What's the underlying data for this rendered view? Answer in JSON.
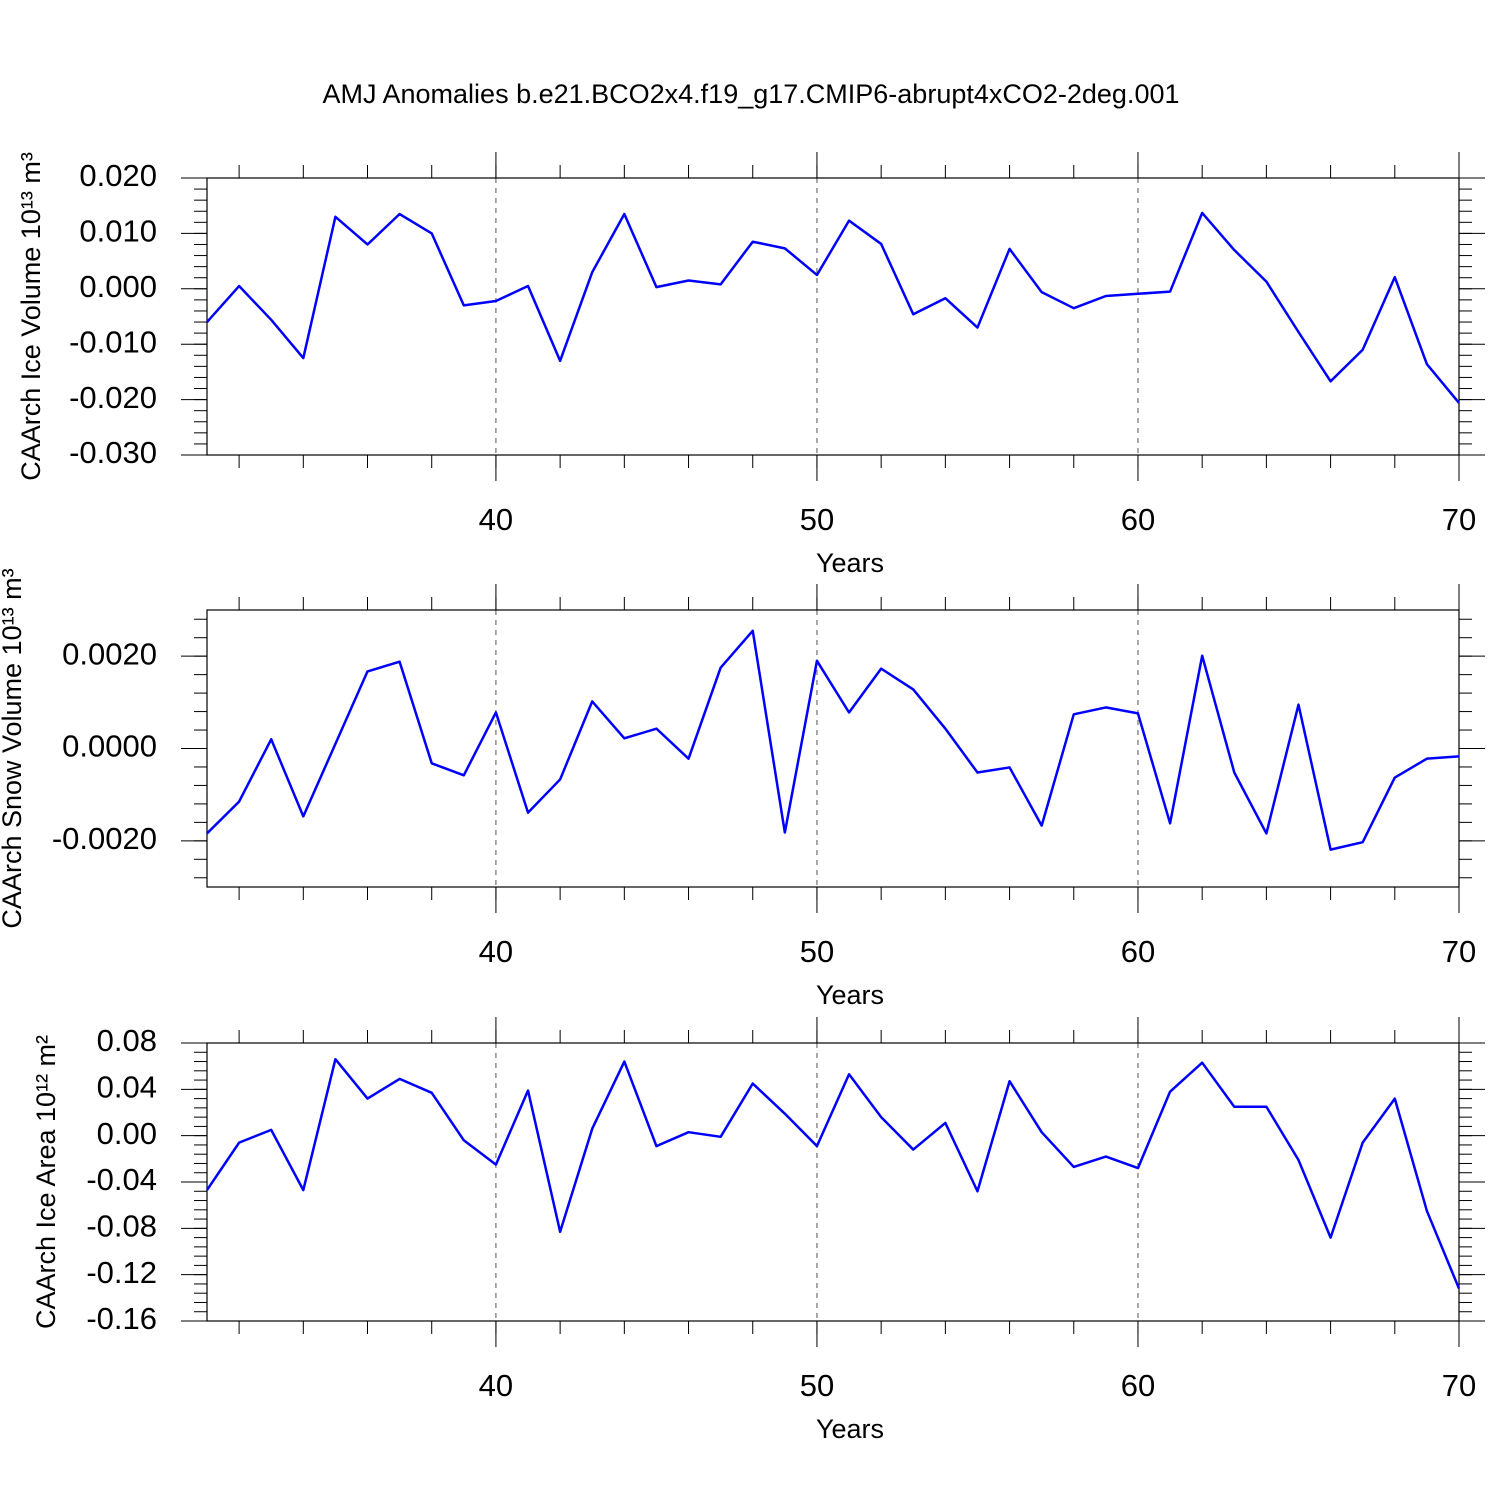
{
  "chart_data": [
    {
      "type": "line",
      "title": "AMJ Anomalies b.e21.BCO2x4.f19_g17.CMIP6-abrupt4xCO2-2deg.001",
      "x_label": "Years",
      "y_label": "CAArch Ice Volume 10¹³ m³",
      "xlim": [
        31,
        70
      ],
      "xticks": [
        40,
        50,
        60,
        70
      ],
      "grid": true,
      "ylim": [
        -0.03,
        0.02
      ],
      "yticks": [
        {
          "value": 0.02,
          "label": "0.020"
        },
        {
          "value": 0.01,
          "label": "0.010"
        },
        {
          "value": 0,
          "label": "0.000"
        },
        {
          "value": -0.01,
          "label": "-0.010"
        },
        {
          "value": -0.02,
          "label": "-0.020"
        },
        {
          "value": -0.03,
          "label": "-0.030"
        }
      ],
      "x": [
        31,
        32,
        33,
        34,
        35,
        36,
        37,
        38,
        39,
        40,
        41,
        42,
        43,
        44,
        45,
        46,
        47,
        48,
        49,
        50,
        51,
        52,
        53,
        54,
        55,
        56,
        57,
        58,
        59,
        60,
        61,
        62,
        63,
        64,
        65,
        66,
        67,
        68,
        69,
        70
      ],
      "series": [
        {
          "color": "#0000ff",
          "values": [
            -0.006,
            0.0005,
            -0.0056,
            -0.0125,
            0.013,
            0.008,
            0.0135,
            0.01,
            -0.003,
            -0.0022,
            0.0005,
            -0.013,
            0.003,
            0.0135,
            0.0003,
            0.0015,
            0.0008,
            0.0085,
            0.0073,
            0.0025,
            0.0123,
            0.0081,
            -0.0046,
            -0.0017,
            -0.007,
            0.0072,
            -0.0006,
            -0.0035,
            -0.0013,
            -0.0009,
            -0.0005,
            0.0137,
            0.007,
            0.0013,
            -0.0078,
            -0.0167,
            -0.011,
            0.0021,
            -0.0136,
            -0.0206
          ]
        }
      ]
    },
    {
      "type": "line",
      "x_label": "Years",
      "y_label": "CAArch Snow Volume 10¹³ m³",
      "xlim": [
        31,
        70
      ],
      "xticks": [
        40,
        50,
        60,
        70
      ],
      "grid": true,
      "ylim": [
        -0.003,
        0.003
      ],
      "yticks": [
        {
          "value": 0.002,
          "label": "0.0020"
        },
        {
          "value": 0,
          "label": "0.0000"
        },
        {
          "value": -0.002,
          "label": "-0.0020"
        }
      ],
      "x": [
        31,
        32,
        33,
        34,
        35,
        36,
        37,
        38,
        39,
        40,
        41,
        42,
        43,
        44,
        45,
        46,
        47,
        48,
        49,
        50,
        51,
        52,
        53,
        54,
        55,
        56,
        57,
        58,
        59,
        60,
        61,
        62,
        63,
        64,
        65,
        66,
        67,
        68,
        69,
        70
      ],
      "series": [
        {
          "color": "#0000ff",
          "values": [
            -0.00184,
            -0.00115,
            0.0002,
            -0.00147,
            0.0001,
            0.00167,
            0.00188,
            -0.00032,
            -0.00058,
            0.00078,
            -0.00139,
            -0.00067,
            0.00102,
            0.00022,
            0.00043,
            -0.00022,
            0.00175,
            0.00255,
            -0.00182,
            0.0019,
            0.00078,
            0.00173,
            0.00128,
            0.00043,
            -0.00052,
            -0.00041,
            -0.00167,
            0.00074,
            0.00089,
            0.00076,
            -0.00162,
            0.00201,
            -0.00052,
            -0.00184,
            0.00095,
            -0.00219,
            -0.00203,
            -0.00063,
            -0.00022,
            -0.00017
          ]
        }
      ]
    },
    {
      "type": "line",
      "x_label": "Years",
      "y_label": "CAArch Ice Area 10¹² m²",
      "xlim": [
        31,
        70
      ],
      "xticks": [
        40,
        50,
        60,
        70
      ],
      "grid": true,
      "ylim": [
        -0.16,
        0.08
      ],
      "yticks": [
        0.08,
        0.04,
        {
          "value": 0,
          "label": "0.00"
        },
        -0.04,
        -0.08,
        -0.12,
        -0.16
      ],
      "x": [
        31,
        32,
        33,
        34,
        35,
        36,
        37,
        38,
        39,
        40,
        41,
        42,
        43,
        44,
        45,
        46,
        47,
        48,
        49,
        50,
        51,
        52,
        53,
        54,
        55,
        56,
        57,
        58,
        59,
        60,
        61,
        62,
        63,
        64,
        65,
        66,
        67,
        68,
        69,
        70
      ],
      "series": [
        {
          "color": "#0000ff",
          "values": [
            -0.047,
            -0.006,
            0.005,
            -0.047,
            0.066,
            0.032,
            0.049,
            0.037,
            -0.004,
            -0.025,
            0.039,
            -0.083,
            0.006,
            0.064,
            -0.009,
            0.003,
            -0.001,
            0.045,
            0.019,
            -0.009,
            0.053,
            0.016,
            -0.012,
            0.011,
            -0.048,
            0.047,
            0.003,
            -0.027,
            -0.018,
            -0.028,
            0.038,
            0.063,
            0.025,
            0.025,
            -0.021,
            -0.088,
            -0.006,
            0.032,
            -0.065,
            -0.132
          ]
        }
      ]
    }
  ]
}
